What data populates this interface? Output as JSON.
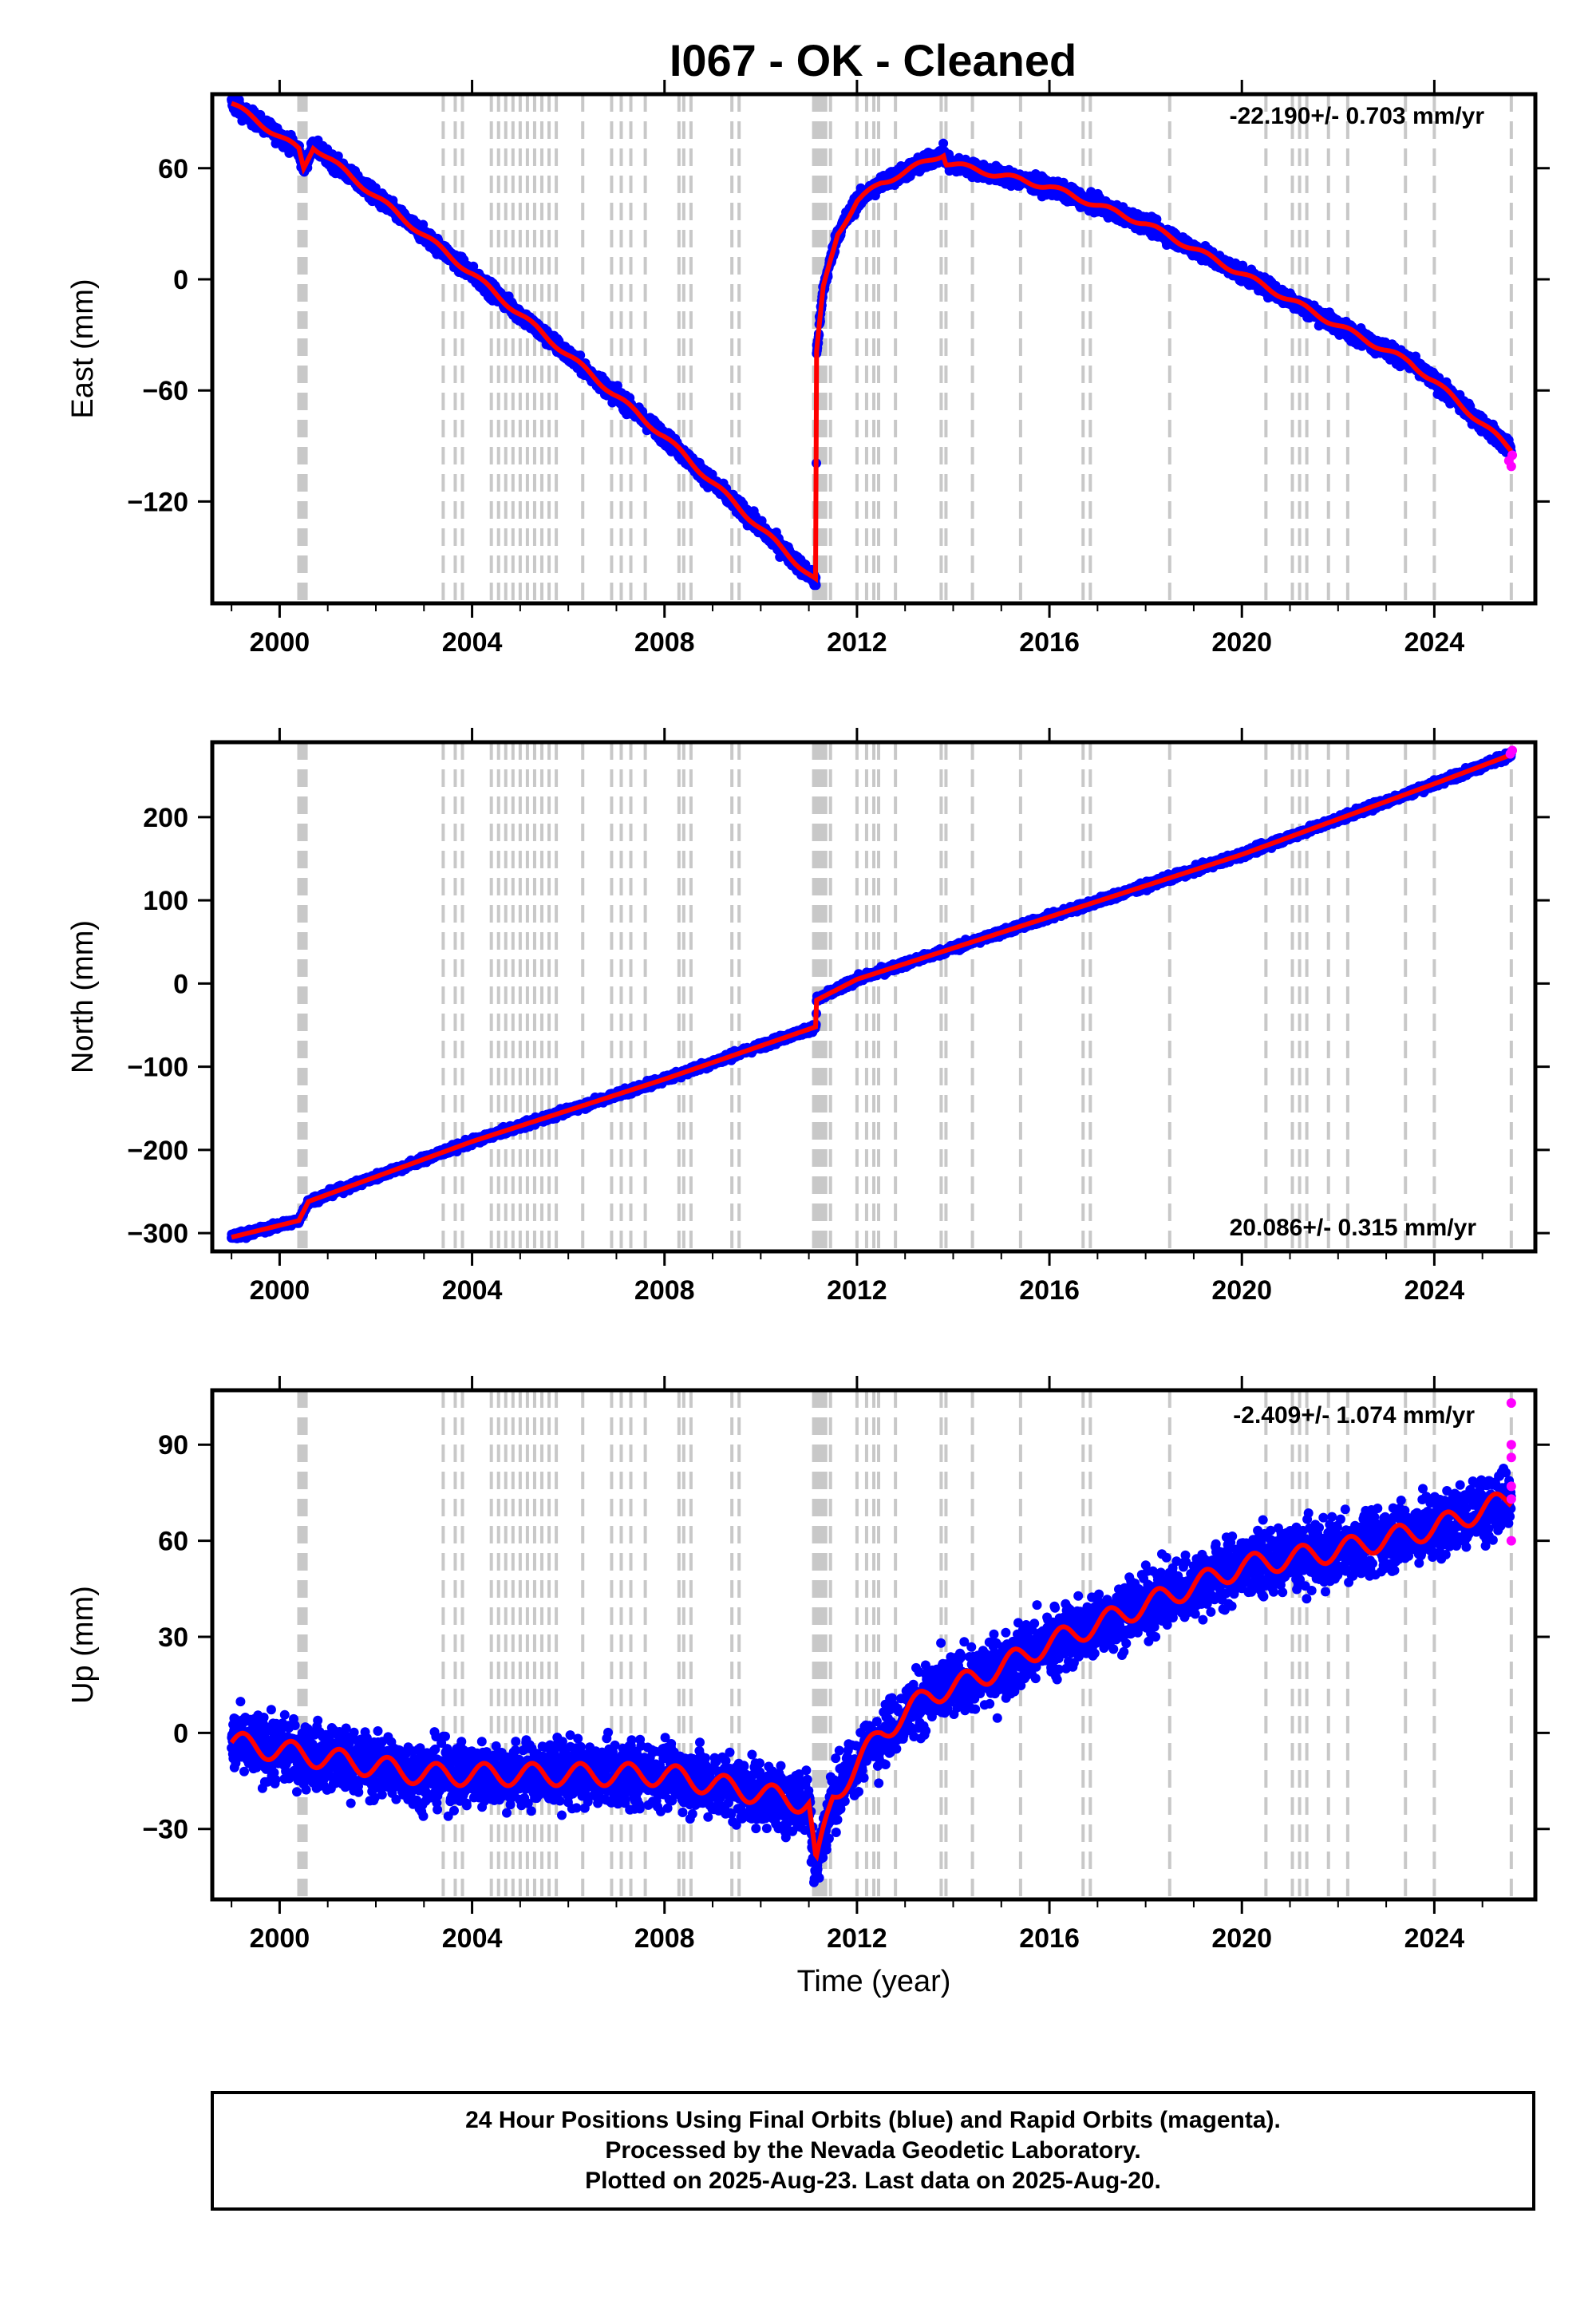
{
  "title": "I067  - OK - Cleaned",
  "colors": {
    "final_orbits": "#0000ff",
    "rapid_orbits": "#ff00ff",
    "model": "#ff0000",
    "event_lines": "#c8c8c8"
  },
  "footer": {
    "line1": "24 Hour Positions Using Final Orbits (blue) and Rapid Orbits (magenta).",
    "line2": "Processed by the Nevada Geodetic Laboratory.",
    "line3": "Plotted on 2025-Aug-23. Last data on 2025-Aug-20."
  },
  "chart_data": [
    {
      "type": "scatter",
      "ylabel": "East (mm)",
      "xlabel": "",
      "rate_label": "-22.190+/- 0.703 mm/yr",
      "xlim": [
        1998.6,
        2026.1
      ],
      "ylim": [
        -175,
        100
      ],
      "x_ticks": [
        2000,
        2004,
        2008,
        2012,
        2016,
        2020,
        2024
      ],
      "y_ticks": [
        60,
        0,
        -60,
        -120
      ],
      "grid": false,
      "model_breakpoints": [
        {
          "x": 1999.0,
          "y": 95
        },
        {
          "x": 2000.4,
          "y": 70
        },
        {
          "x": 2000.5,
          "y": 60
        },
        {
          "x": 2000.7,
          "y": 72
        },
        {
          "x": 2004.0,
          "y": 3
        },
        {
          "x": 2008.0,
          "y": -85
        },
        {
          "x": 2011.15,
          "y": -163
        },
        {
          "x": 2011.16,
          "y": -40
        },
        {
          "x": 2011.3,
          "y": -5
        },
        {
          "x": 2011.6,
          "y": 25
        },
        {
          "x": 2012.0,
          "y": 42
        },
        {
          "x": 2012.5,
          "y": 52
        },
        {
          "x": 2013.0,
          "y": 58
        },
        {
          "x": 2013.8,
          "y": 68
        },
        {
          "x": 2013.85,
          "y": 63
        },
        {
          "x": 2016.0,
          "y": 50
        },
        {
          "x": 2018.0,
          "y": 30
        },
        {
          "x": 2020.0,
          "y": 3
        },
        {
          "x": 2022.0,
          "y": -25
        },
        {
          "x": 2023.5,
          "y": -45
        },
        {
          "x": 2024.0,
          "y": -55
        },
        {
          "x": 2025.6,
          "y": -92
        }
      ],
      "noise_mm": 3,
      "rapid_points": [
        {
          "x": 2025.55,
          "y": -98
        },
        {
          "x": 2025.6,
          "y": -101
        },
        {
          "x": 2025.62,
          "y": -95
        }
      ]
    },
    {
      "type": "scatter",
      "ylabel": "North (mm)",
      "xlabel": "",
      "rate_label": "20.086+/- 0.315 mm/yr",
      "xlim": [
        1998.6,
        2026.1
      ],
      "ylim": [
        -322,
        290
      ],
      "x_ticks": [
        2000,
        2004,
        2008,
        2012,
        2016,
        2020,
        2024
      ],
      "y_ticks": [
        200,
        100,
        0,
        -100,
        -200,
        -300
      ],
      "grid": false,
      "model_breakpoints": [
        {
          "x": 1999.0,
          "y": -305
        },
        {
          "x": 2000.4,
          "y": -285
        },
        {
          "x": 2000.6,
          "y": -262
        },
        {
          "x": 2004.0,
          "y": -190
        },
        {
          "x": 2008.0,
          "y": -115
        },
        {
          "x": 2011.15,
          "y": -52
        },
        {
          "x": 2011.16,
          "y": -20
        },
        {
          "x": 2012.0,
          "y": 5
        },
        {
          "x": 2016.0,
          "y": 80
        },
        {
          "x": 2020.0,
          "y": 155
        },
        {
          "x": 2024.0,
          "y": 240
        },
        {
          "x": 2025.6,
          "y": 275
        }
      ],
      "noise_mm": 3,
      "rapid_points": [
        {
          "x": 2025.58,
          "y": 276
        },
        {
          "x": 2025.62,
          "y": 280
        }
      ]
    },
    {
      "type": "scatter",
      "ylabel": "Up (mm)",
      "xlabel": "Time (year)",
      "rate_label": "-2.409+/- 1.074 mm/yr",
      "xlim": [
        1998.6,
        2026.1
      ],
      "ylim": [
        -52,
        107
      ],
      "x_ticks": [
        2000,
        2004,
        2008,
        2012,
        2016,
        2020,
        2024
      ],
      "y_ticks": [
        90,
        60,
        30,
        0,
        -30
      ],
      "grid": false,
      "model_breakpoints": [
        {
          "x": 1999.0,
          "y": -3
        },
        {
          "x": 2003.0,
          "y": -13
        },
        {
          "x": 2008.0,
          "y": -13
        },
        {
          "x": 2011.0,
          "y": -22
        },
        {
          "x": 2011.15,
          "y": -42
        },
        {
          "x": 2011.5,
          "y": -20
        },
        {
          "x": 2012.5,
          "y": 0
        },
        {
          "x": 2013.5,
          "y": 12
        },
        {
          "x": 2014.5,
          "y": 17
        },
        {
          "x": 2016.0,
          "y": 28
        },
        {
          "x": 2018.0,
          "y": 40
        },
        {
          "x": 2020.0,
          "y": 52
        },
        {
          "x": 2022.0,
          "y": 57
        },
        {
          "x": 2024.0,
          "y": 64
        },
        {
          "x": 2025.6,
          "y": 73
        }
      ],
      "noise_mm": 7,
      "rapid_points": [
        {
          "x": 2025.6,
          "y": 103
        },
        {
          "x": 2025.6,
          "y": 90
        },
        {
          "x": 2025.6,
          "y": 86
        },
        {
          "x": 2025.6,
          "y": 77
        },
        {
          "x": 2025.6,
          "y": 73
        },
        {
          "x": 2025.6,
          "y": 60
        }
      ]
    }
  ],
  "event_lines_years": [
    2000.4,
    2000.45,
    2000.5,
    2000.55,
    2003.4,
    2003.65,
    2003.8,
    2004.4,
    2004.55,
    2004.7,
    2004.85,
    2005.0,
    2005.15,
    2005.3,
    2005.45,
    2005.6,
    2005.75,
    2006.3,
    2006.9,
    2007.1,
    2007.3,
    2007.6,
    2008.3,
    2008.4,
    2008.55,
    2009.4,
    2009.55,
    2011.1,
    2011.15,
    2011.2,
    2011.25,
    2011.3,
    2011.35,
    2011.45,
    2012.0,
    2012.2,
    2012.35,
    2012.45,
    2012.8,
    2013.75,
    2013.85,
    2014.4,
    2015.4,
    2016.7,
    2016.85,
    2018.5,
    2020.5,
    2021.05,
    2021.2,
    2021.35,
    2021.8,
    2022.2,
    2023.4,
    2024.0,
    2025.6
  ]
}
